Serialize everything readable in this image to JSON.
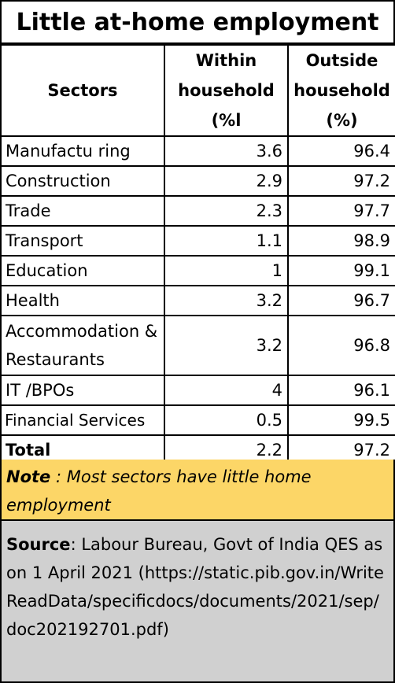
{
  "title": "Little at-home employment",
  "headers": {
    "sectors": "Sectors",
    "within": [
      "Within",
      "household",
      "(%l"
    ],
    "outside": [
      "Outside",
      "household",
      "(%)"
    ]
  },
  "rows": [
    {
      "sector": "Manufactu ring",
      "within": "3.6",
      "outside": "96.4"
    },
    {
      "sector": "Construction",
      "within": "2.9",
      "outside": "97.2"
    },
    {
      "sector": "Trade",
      "within": "2.3",
      "outside": "97.7"
    },
    {
      "sector": "Transport",
      "within": "1.1",
      "outside": "98.9"
    },
    {
      "sector": "Education",
      "within": "1",
      "outside": "99.1"
    },
    {
      "sector": "Health",
      "within": "3.2",
      "outside": "96.7"
    },
    {
      "sector": "Accommodation & Restaurants",
      "within": "3.2",
      "outside": "96.8"
    },
    {
      "sector": "IT /BPOs",
      "within": "4",
      "outside": "96.1"
    },
    {
      "sector": "Financial Services",
      "within": "0.5",
      "outside": "99.5"
    },
    {
      "sector": "Total",
      "within": "2.2",
      "outside": "97.2"
    }
  ],
  "note": {
    "label": "Note",
    "text": " : Most sectors have little home employment"
  },
  "source": {
    "label": "Source",
    "text": ": Labour Bureau, Govt of India QES as on 1 April 2021 (https://static.pib.gov.in/WriteReadData/specificdocs/documents/2021/sep/doc202192701.pdf)"
  },
  "colors": {
    "note_bg": "#fcd667",
    "source_bg": "#d0d0d0"
  }
}
